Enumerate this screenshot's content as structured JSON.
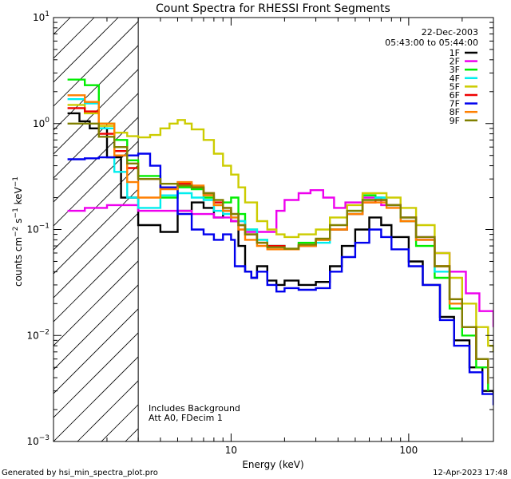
{
  "chart_data": {
    "type": "line",
    "title": "Count Spectra for RHESSI Front Segments",
    "xlabel": "Energy (keV)",
    "ylabel_base": "counts cm",
    "ylabel_sup1": "−2",
    "ylabel_mid": " s",
    "ylabel_sup2": "−1",
    "ylabel_end": " keV",
    "ylabel_sup3": "−1",
    "x_scale": "log",
    "y_scale": "log",
    "xlim": [
      1,
      300
    ],
    "ylim": [
      0.001,
      10
    ],
    "x_ticks": [
      {
        "value": 10,
        "label": "10"
      },
      {
        "value": 100,
        "label": "100"
      }
    ],
    "y_ticks": [
      {
        "value": 0.001,
        "base": "10",
        "exp": "−3"
      },
      {
        "value": 0.01,
        "base": "10",
        "exp": "−2"
      },
      {
        "value": 0.1,
        "base": "10",
        "exp": "−1"
      },
      {
        "value": 1,
        "base": "10",
        "exp": "0"
      },
      {
        "value": 10,
        "base": "10",
        "exp": "1"
      }
    ],
    "date": "22-Dec-2003",
    "time_range": "05:43:00 to 05:44:00",
    "attenuator_region_max_kev": 3,
    "annotations": [
      "Includes Background",
      "Att A0, FDecim 1"
    ],
    "footer_left": "Generated by hsi_min_spectra_plot.pro",
    "footer_right": "12-Apr-2023 17:48",
    "series": [
      {
        "name": "1F",
        "color": "#000000",
        "points": [
          [
            1.2,
            1.25
          ],
          [
            1.4,
            1.05
          ],
          [
            1.6,
            0.9
          ],
          [
            2,
            0.48
          ],
          [
            2.4,
            0.2
          ],
          [
            3,
            0.11
          ],
          [
            4,
            0.095
          ],
          [
            5,
            0.15
          ],
          [
            6,
            0.18
          ],
          [
            7,
            0.16
          ],
          [
            8,
            0.13
          ],
          [
            9,
            0.15
          ],
          [
            10,
            0.12
          ],
          [
            11,
            0.07
          ],
          [
            12,
            0.04
          ],
          [
            13,
            0.035
          ],
          [
            14,
            0.045
          ],
          [
            16,
            0.033
          ],
          [
            18,
            0.03
          ],
          [
            20,
            0.033
          ],
          [
            24,
            0.03
          ],
          [
            30,
            0.032
          ],
          [
            36,
            0.045
          ],
          [
            42,
            0.07
          ],
          [
            50,
            0.1
          ],
          [
            60,
            0.13
          ],
          [
            70,
            0.11
          ],
          [
            80,
            0.085
          ],
          [
            100,
            0.05
          ],
          [
            120,
            0.03
          ],
          [
            150,
            0.015
          ],
          [
            180,
            0.009
          ],
          [
            220,
            0.005
          ],
          [
            260,
            0.003
          ],
          [
            300,
            0.0028
          ]
        ]
      },
      {
        "name": "2F",
        "color": "#ee00ee",
        "points": [
          [
            1.2,
            0.15
          ],
          [
            1.5,
            0.16
          ],
          [
            2,
            0.17
          ],
          [
            3,
            0.15
          ],
          [
            4,
            0.15
          ],
          [
            6,
            0.14
          ],
          [
            8,
            0.13
          ],
          [
            10,
            0.12
          ],
          [
            12,
            0.095
          ],
          [
            15,
            0.095
          ],
          [
            18,
            0.15
          ],
          [
            20,
            0.19
          ],
          [
            24,
            0.22
          ],
          [
            28,
            0.235
          ],
          [
            33,
            0.2
          ],
          [
            38,
            0.16
          ],
          [
            44,
            0.18
          ],
          [
            55,
            0.2
          ],
          [
            70,
            0.17
          ],
          [
            90,
            0.12
          ],
          [
            110,
            0.085
          ],
          [
            140,
            0.06
          ],
          [
            170,
            0.04
          ],
          [
            210,
            0.025
          ],
          [
            250,
            0.017
          ],
          [
            300,
            0.012
          ]
        ]
      },
      {
        "name": "3F",
        "color": "#00ee00",
        "points": [
          [
            1.2,
            2.6
          ],
          [
            1.5,
            2.3
          ],
          [
            1.8,
            1.0
          ],
          [
            2.2,
            0.7
          ],
          [
            2.6,
            0.45
          ],
          [
            3,
            0.32
          ],
          [
            4,
            0.2
          ],
          [
            5,
            0.25
          ],
          [
            6,
            0.24
          ],
          [
            7,
            0.2
          ],
          [
            8,
            0.17
          ],
          [
            9,
            0.18
          ],
          [
            10,
            0.2
          ],
          [
            11,
            0.14
          ],
          [
            12,
            0.1
          ],
          [
            14,
            0.08
          ],
          [
            16,
            0.07
          ],
          [
            20,
            0.065
          ],
          [
            24,
            0.075
          ],
          [
            30,
            0.08
          ],
          [
            36,
            0.1
          ],
          [
            45,
            0.15
          ],
          [
            55,
            0.21
          ],
          [
            65,
            0.2
          ],
          [
            75,
            0.17
          ],
          [
            90,
            0.12
          ],
          [
            110,
            0.07
          ],
          [
            140,
            0.035
          ],
          [
            170,
            0.018
          ],
          [
            200,
            0.01
          ],
          [
            240,
            0.005
          ],
          [
            280,
            0.003
          ]
        ]
      },
      {
        "name": "4F",
        "color": "#00eeee",
        "points": [
          [
            1.2,
            1.7
          ],
          [
            1.5,
            1.55
          ],
          [
            1.8,
            0.9
          ],
          [
            2.2,
            0.35
          ],
          [
            2.6,
            0.2
          ],
          [
            3,
            0.16
          ],
          [
            4,
            0.21
          ],
          [
            5,
            0.22
          ],
          [
            6,
            0.2
          ],
          [
            7,
            0.19
          ],
          [
            8,
            0.15
          ],
          [
            9,
            0.14
          ],
          [
            10,
            0.13
          ],
          [
            11,
            0.12
          ],
          [
            12,
            0.1
          ],
          [
            14,
            0.08
          ],
          [
            16,
            0.07
          ],
          [
            20,
            0.065
          ],
          [
            24,
            0.07
          ],
          [
            30,
            0.075
          ],
          [
            36,
            0.1
          ],
          [
            45,
            0.14
          ],
          [
            55,
            0.19
          ],
          [
            65,
            0.2
          ],
          [
            75,
            0.17
          ],
          [
            90,
            0.13
          ],
          [
            110,
            0.08
          ],
          [
            140,
            0.04
          ],
          [
            170,
            0.02
          ],
          [
            200,
            0.012
          ],
          [
            240,
            0.006
          ],
          [
            280,
            0.004
          ]
        ]
      },
      {
        "name": "5F",
        "color": "#cccc00",
        "points": [
          [
            1.2,
            1.5
          ],
          [
            1.5,
            1.25
          ],
          [
            1.8,
            0.95
          ],
          [
            2.2,
            0.82
          ],
          [
            2.6,
            0.76
          ],
          [
            3,
            0.74
          ],
          [
            3.5,
            0.78
          ],
          [
            4,
            0.9
          ],
          [
            4.5,
            1.0
          ],
          [
            5,
            1.08
          ],
          [
            5.5,
            1.0
          ],
          [
            6,
            0.88
          ],
          [
            7,
            0.7
          ],
          [
            8,
            0.52
          ],
          [
            9,
            0.4
          ],
          [
            10,
            0.33
          ],
          [
            11,
            0.25
          ],
          [
            12,
            0.18
          ],
          [
            14,
            0.12
          ],
          [
            16,
            0.1
          ],
          [
            18,
            0.09
          ],
          [
            20,
            0.085
          ],
          [
            24,
            0.09
          ],
          [
            30,
            0.1
          ],
          [
            36,
            0.13
          ],
          [
            45,
            0.17
          ],
          [
            55,
            0.22
          ],
          [
            65,
            0.22
          ],
          [
            75,
            0.2
          ],
          [
            90,
            0.16
          ],
          [
            110,
            0.11
          ],
          [
            140,
            0.06
          ],
          [
            170,
            0.035
          ],
          [
            200,
            0.02
          ],
          [
            240,
            0.012
          ],
          [
            280,
            0.008
          ],
          [
            300,
            0.007
          ]
        ]
      },
      {
        "name": "6F",
        "color": "#ee0000",
        "points": [
          [
            1.2,
            1.4
          ],
          [
            1.5,
            1.3
          ],
          [
            1.8,
            0.8
          ],
          [
            2.2,
            0.55
          ],
          [
            2.6,
            0.38
          ],
          [
            3,
            0.3
          ],
          [
            4,
            0.25
          ],
          [
            5,
            0.27
          ],
          [
            6,
            0.25
          ],
          [
            7,
            0.22
          ],
          [
            8,
            0.18
          ],
          [
            9,
            0.16
          ],
          [
            10,
            0.14
          ],
          [
            11,
            0.11
          ],
          [
            12,
            0.09
          ],
          [
            14,
            0.075
          ],
          [
            16,
            0.07
          ],
          [
            20,
            0.065
          ],
          [
            24,
            0.07
          ],
          [
            30,
            0.08
          ],
          [
            36,
            0.1
          ],
          [
            45,
            0.14
          ],
          [
            55,
            0.18
          ],
          [
            65,
            0.19
          ],
          [
            75,
            0.17
          ],
          [
            90,
            0.13
          ],
          [
            110,
            0.08
          ],
          [
            140,
            0.045
          ],
          [
            170,
            0.022
          ],
          [
            200,
            0.012
          ],
          [
            240,
            0.006
          ],
          [
            280,
            0.004
          ]
        ]
      },
      {
        "name": "7F",
        "color": "#0000ee",
        "points": [
          [
            1.2,
            0.46
          ],
          [
            1.5,
            0.47
          ],
          [
            1.8,
            0.48
          ],
          [
            2.2,
            0.5
          ],
          [
            2.6,
            0.5
          ],
          [
            3,
            0.52
          ],
          [
            3.5,
            0.4
          ],
          [
            4,
            0.25
          ],
          [
            5,
            0.14
          ],
          [
            6,
            0.1
          ],
          [
            7,
            0.09
          ],
          [
            8,
            0.08
          ],
          [
            9,
            0.09
          ],
          [
            10,
            0.08
          ],
          [
            10.5,
            0.045
          ],
          [
            12,
            0.04
          ],
          [
            13,
            0.035
          ],
          [
            14,
            0.04
          ],
          [
            16,
            0.03
          ],
          [
            18,
            0.026
          ],
          [
            20,
            0.028
          ],
          [
            24,
            0.027
          ],
          [
            30,
            0.028
          ],
          [
            36,
            0.04
          ],
          [
            42,
            0.055
          ],
          [
            50,
            0.075
          ],
          [
            60,
            0.1
          ],
          [
            70,
            0.085
          ],
          [
            80,
            0.065
          ],
          [
            100,
            0.045
          ],
          [
            120,
            0.03
          ],
          [
            150,
            0.014
          ],
          [
            180,
            0.008
          ],
          [
            220,
            0.0045
          ],
          [
            260,
            0.0028
          ],
          [
            300,
            0.0022
          ]
        ]
      },
      {
        "name": "8F",
        "color": "#ff7f00",
        "points": [
          [
            1.2,
            1.85
          ],
          [
            1.5,
            1.6
          ],
          [
            1.8,
            1.0
          ],
          [
            2.2,
            0.5
          ],
          [
            2.6,
            0.28
          ],
          [
            3,
            0.2
          ],
          [
            4,
            0.24
          ],
          [
            5,
            0.28
          ],
          [
            6,
            0.26
          ],
          [
            7,
            0.21
          ],
          [
            8,
            0.17
          ],
          [
            9,
            0.15
          ],
          [
            10,
            0.13
          ],
          [
            11,
            0.1
          ],
          [
            12,
            0.08
          ],
          [
            14,
            0.07
          ],
          [
            16,
            0.065
          ],
          [
            20,
            0.065
          ],
          [
            24,
            0.07
          ],
          [
            30,
            0.08
          ],
          [
            36,
            0.1
          ],
          [
            45,
            0.14
          ],
          [
            55,
            0.18
          ],
          [
            65,
            0.18
          ],
          [
            75,
            0.16
          ],
          [
            90,
            0.12
          ],
          [
            110,
            0.08
          ],
          [
            140,
            0.045
          ],
          [
            170,
            0.02
          ],
          [
            200,
            0.012
          ],
          [
            240,
            0.006
          ],
          [
            280,
            0.0038
          ]
        ]
      },
      {
        "name": "9F",
        "color": "#808000",
        "points": [
          [
            1.2,
            1.0
          ],
          [
            1.5,
            1.0
          ],
          [
            1.8,
            0.75
          ],
          [
            2.2,
            0.6
          ],
          [
            2.6,
            0.42
          ],
          [
            3,
            0.3
          ],
          [
            4,
            0.27
          ],
          [
            5,
            0.26
          ],
          [
            6,
            0.25
          ],
          [
            7,
            0.22
          ],
          [
            8,
            0.19
          ],
          [
            9,
            0.16
          ],
          [
            10,
            0.14
          ],
          [
            11,
            0.11
          ],
          [
            12,
            0.09
          ],
          [
            14,
            0.075
          ],
          [
            16,
            0.068
          ],
          [
            20,
            0.066
          ],
          [
            24,
            0.072
          ],
          [
            30,
            0.082
          ],
          [
            36,
            0.11
          ],
          [
            45,
            0.15
          ],
          [
            55,
            0.19
          ],
          [
            65,
            0.19
          ],
          [
            75,
            0.17
          ],
          [
            90,
            0.13
          ],
          [
            110,
            0.085
          ],
          [
            140,
            0.045
          ],
          [
            170,
            0.022
          ],
          [
            200,
            0.012
          ],
          [
            240,
            0.006
          ],
          [
            280,
            0.0035
          ]
        ]
      }
    ]
  }
}
